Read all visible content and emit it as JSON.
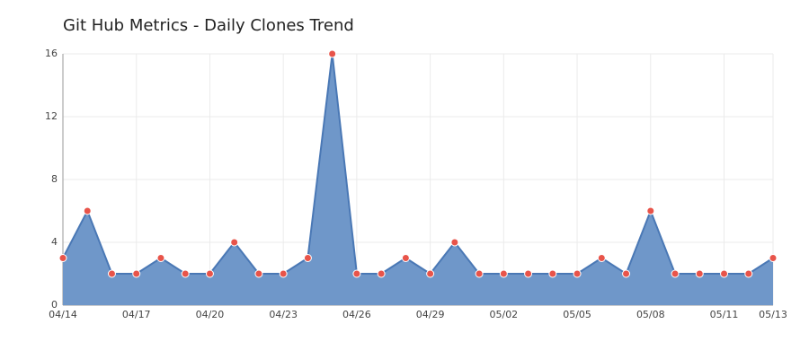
{
  "chart_data": {
    "type": "area",
    "title": "Git Hub Metrics - Daily Clones Trend",
    "categories": [
      "04/14",
      null,
      null,
      "04/17",
      null,
      null,
      "04/20",
      null,
      null,
      "04/23",
      null,
      null,
      "04/26",
      null,
      null,
      "04/29",
      null,
      null,
      "05/02",
      null,
      null,
      "05/05",
      null,
      null,
      "05/08",
      null,
      null,
      "05/11",
      null,
      "05/13"
    ],
    "values": [
      3,
      6,
      2,
      2,
      3,
      2,
      2,
      4,
      2,
      2,
      3,
      16,
      2,
      2,
      3,
      2,
      4,
      2,
      2,
      2,
      2,
      2,
      3,
      2,
      6,
      2,
      2,
      2,
      2,
      3
    ],
    "color": "#6f97c9",
    "line_color": "#4a78b5",
    "marker_color": "#e8544a",
    "ylim": [
      0,
      16
    ],
    "yticks": [
      0,
      4,
      8,
      12,
      16
    ],
    "grid": true
  }
}
